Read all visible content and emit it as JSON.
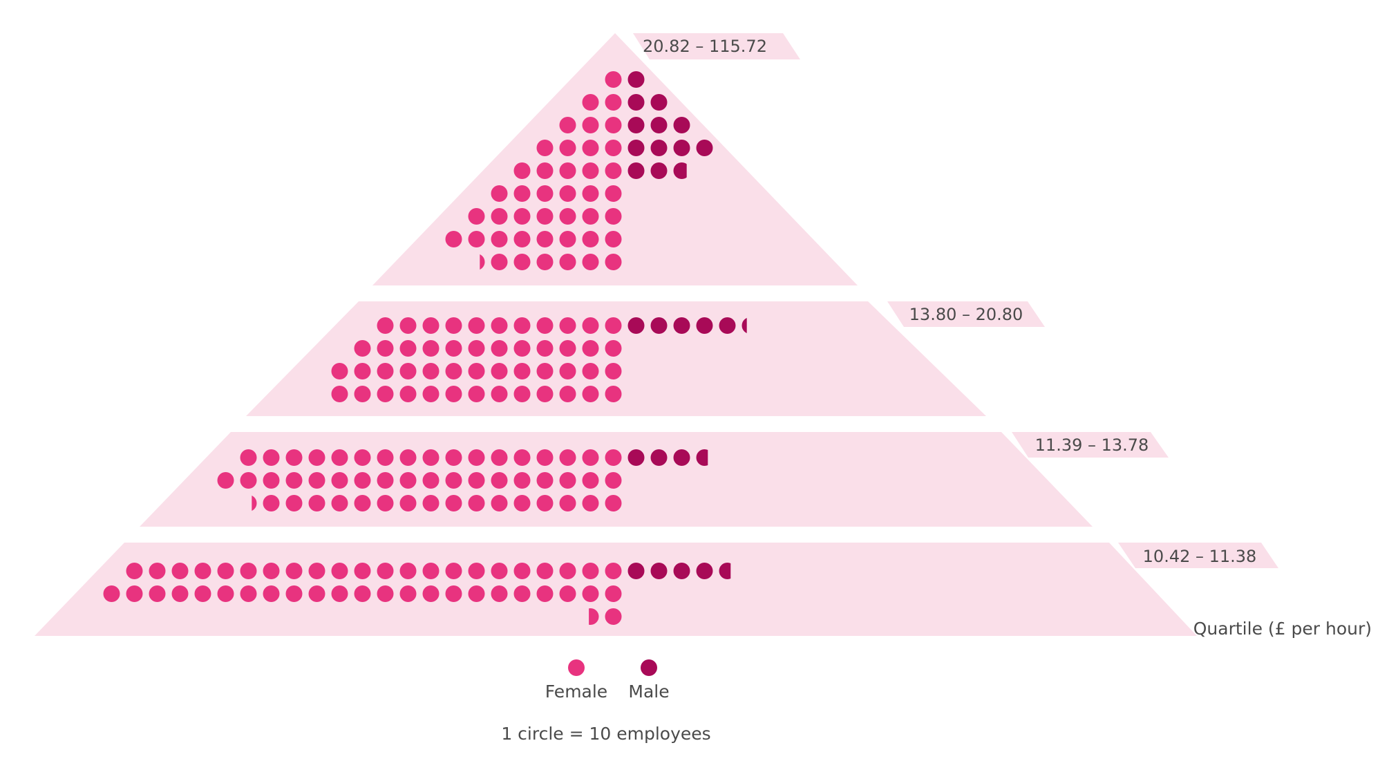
{
  "chart_data": {
    "type": "pictogram",
    "axis_caption": "Quartile (£ per hour)",
    "unit_note": "1 circle = 10 employees",
    "legend": [
      {
        "label": "Female",
        "color": "#e8337f"
      },
      {
        "label": "Male",
        "color": "#a80a57"
      }
    ],
    "quartiles": [
      {
        "range": "20.82 – 115.72",
        "female_circles": 42.3,
        "male_circles": 12.8
      },
      {
        "range": "13.80 – 20.80",
        "female_circles": 49.2,
        "male_circles": 5.3
      },
      {
        "range": "11.39 – 13.78",
        "female_circles": 51.3,
        "male_circles": 3.7
      },
      {
        "range": "10.42 – 11.38",
        "female_circles": 46.6,
        "male_circles": 4.7
      }
    ]
  }
}
